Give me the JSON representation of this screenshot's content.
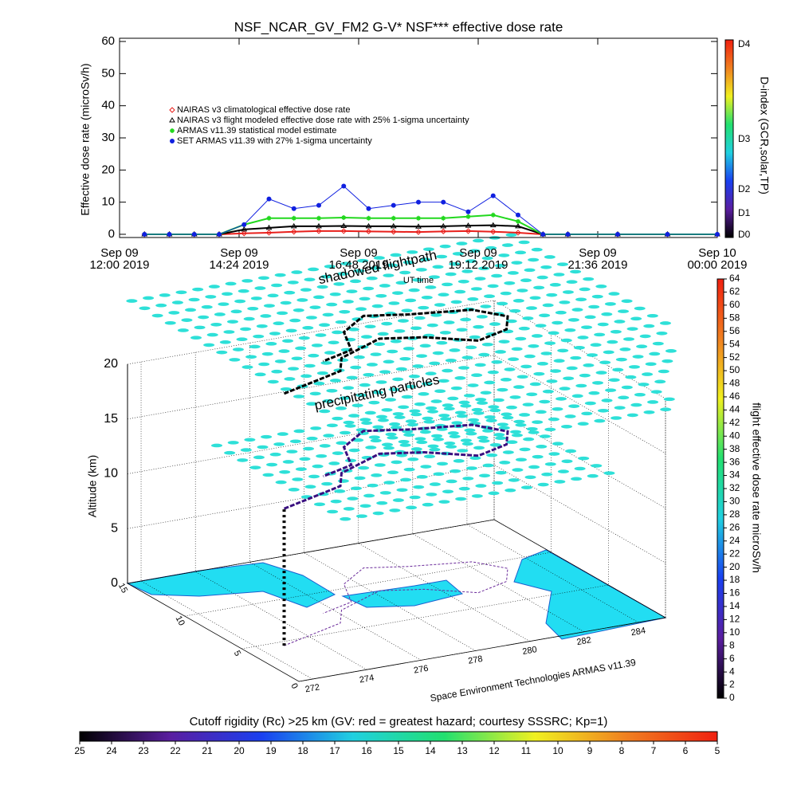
{
  "chart_data": [
    {
      "type": "line",
      "title": "NSF_NCAR_GV_FM2 G-V* NSF*** effective dose rate",
      "ylabel": "Effective dose rate (microSv/h)",
      "xlabel": "UT time",
      "ylim": [
        -1,
        61
      ],
      "yticks": [
        0,
        10,
        20,
        30,
        40,
        50,
        60
      ],
      "xlim": [
        0,
        12
      ],
      "xticks": [
        {
          "value": 0,
          "label": "Sep 09\n12:00 2019"
        },
        {
          "value": 2.4,
          "label": "Sep 09\n14:24 2019"
        },
        {
          "value": 4.8,
          "label": "Sep 09\n16:48 2019"
        },
        {
          "value": 7.2,
          "label": "Sep 09\n19:12 2019"
        },
        {
          "value": 9.6,
          "label": "Sep 09\n21:36 2019"
        },
        {
          "value": 12,
          "label": "Sep 10\n00:00 2019"
        }
      ],
      "x": [
        0.5,
        1,
        1.5,
        2,
        2.5,
        3,
        3.5,
        4,
        4.5,
        5,
        5.5,
        6,
        6.5,
        7,
        7.5,
        8,
        8.5,
        9,
        10,
        11,
        12
      ],
      "series": [
        {
          "name": "NAIRAS v3 climatological effective dose rate",
          "color": "#e8201c",
          "marker": "diamond",
          "values": [
            0,
            0,
            0,
            0,
            0.3,
            0.5,
            0.8,
            1,
            1,
            0.9,
            0.8,
            0.7,
            0.9,
            1,
            0.8,
            0.5,
            0,
            0,
            0,
            0,
            0
          ]
        },
        {
          "name": "NAIRAS v3 flight modeled effective dose rate with 25% 1-sigma uncertainty",
          "color": "#000000",
          "marker": "triangle",
          "values": [
            0,
            0,
            0,
            0,
            1.5,
            2,
            2.5,
            2.5,
            2.6,
            2.5,
            2.5,
            2.4,
            2.5,
            2.7,
            2.8,
            2.5,
            0,
            0,
            0,
            0,
            0
          ]
        },
        {
          "name": "ARMAS v11.39 statistical model estimate",
          "color": "#22d81e",
          "marker": "star",
          "values": [
            0,
            0,
            0,
            0,
            3,
            5,
            5,
            5,
            5.2,
            5,
            5,
            5,
            5,
            5.5,
            6,
            4,
            0,
            0,
            0,
            0,
            0
          ]
        },
        {
          "name": "SET ARMAS v11.39 with 27% 1-sigma uncertainty",
          "color": "#1020e0",
          "marker": "dot",
          "values": [
            0,
            0,
            0,
            0,
            3,
            11,
            8,
            9,
            15,
            8,
            9,
            10,
            10,
            7,
            12,
            6,
            0,
            0,
            0,
            0,
            0
          ]
        }
      ]
    },
    {
      "type": "colorbar",
      "title": "D-index (GCR,solar,TP)",
      "ticks": [
        "D4",
        "D3",
        "D2",
        "D1",
        "D0"
      ],
      "colors": [
        "#000000",
        "#5a1ea0",
        "#1a40f0",
        "#20d0e0",
        "#22e070",
        "#f0f020",
        "#f08020",
        "#f02010"
      ]
    },
    {
      "type": "3d",
      "zlabel": "Altitude (km)",
      "zlim": [
        0,
        20
      ],
      "zticks": [
        0,
        5,
        10,
        15,
        20
      ],
      "latlim": [
        0,
        15
      ],
      "latticks": [
        0,
        5,
        10,
        15
      ],
      "lonlim": [
        271.5,
        285
      ],
      "lonticks": [
        272,
        274,
        276,
        278,
        280,
        282,
        284
      ],
      "annotations": [
        "shadowed flightpath",
        "precipitating particles",
        "Space Environment Technologies ARMAS v11.39"
      ]
    },
    {
      "type": "colorbar",
      "title": "flight effective dose rate microSv/h",
      "lim": [
        0,
        64
      ],
      "ticks": [
        0,
        2,
        4,
        6,
        8,
        10,
        12,
        14,
        16,
        18,
        20,
        22,
        24,
        26,
        28,
        30,
        32,
        34,
        36,
        38,
        40,
        42,
        44,
        46,
        48,
        50,
        52,
        54,
        56,
        58,
        60,
        62,
        64
      ],
      "colors": [
        "#000000",
        "#5a1ea0",
        "#1a40f0",
        "#20d0e0",
        "#22e070",
        "#f0f020",
        "#f08020",
        "#f02010"
      ]
    },
    {
      "type": "colorbar",
      "title": "Cutoff rigidity (Rc) >25 km (GV: red = greatest hazard; courtesy SSSRC; Kp=1)",
      "lim": [
        25,
        5
      ],
      "ticks": [
        25,
        24,
        23,
        22,
        21,
        20,
        19,
        18,
        17,
        16,
        15,
        14,
        13,
        12,
        11,
        10,
        9,
        8,
        7,
        6,
        5
      ],
      "colors": [
        "#000000",
        "#5a1ea0",
        "#1a40f0",
        "#20d0e0",
        "#22e070",
        "#f0f020",
        "#f08020",
        "#f02010"
      ]
    }
  ]
}
